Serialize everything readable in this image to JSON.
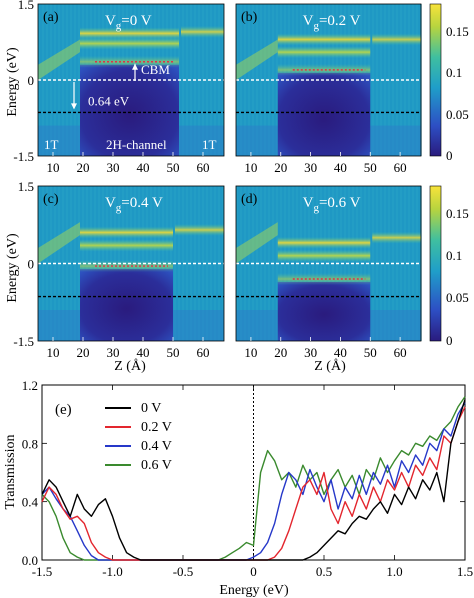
{
  "heatmaps": {
    "y_axis_label": "Energy (eV)",
    "x_axis_label": "Z (Å)",
    "colorbar_ticks": [
      "0.15",
      "0.1",
      "0.05",
      "0"
    ],
    "panels": [
      {
        "tag": "(a)",
        "vg_prefix": "V",
        "vg_sub": "g",
        "vg_value": "=0 V"
      },
      {
        "tag": "(b)",
        "vg_prefix": "V",
        "vg_sub": "g",
        "vg_value": "=0.2 V"
      },
      {
        "tag": "(c)",
        "vg_prefix": "V",
        "vg_sub": "g",
        "vg_value": "=0.4 V"
      },
      {
        "tag": "(d)",
        "vg_prefix": "V",
        "vg_sub": "g",
        "vg_value": "=0.6 V"
      }
    ],
    "annotations": {
      "cbm": "CBM",
      "offset": "0.64 eV",
      "left_region": "1T",
      "channel": "2H-channel",
      "right_region": "1T"
    },
    "colors": {
      "low": "#2b1b8a",
      "mid": "#1f9ec9",
      "high": "#f5e23a",
      "cbm_line": "#e0304a"
    }
  },
  "chart_data": [
    {
      "type": "heatmap",
      "panel": "(a)",
      "x_ticks": [
        10,
        20,
        30,
        40,
        50,
        60
      ],
      "y_ticks": [
        1.5,
        0,
        -1.5
      ],
      "xlim": [
        5,
        67
      ],
      "ylim": [
        -1.5,
        1.5
      ],
      "colorbar_range": [
        0,
        0.18
      ],
      "colorbar_ticks": [
        0,
        0.05,
        0.1,
        0.15
      ],
      "channel_z": [
        19,
        52
      ],
      "gap_bottom_eV": -1.5,
      "cbm_eV": 0.36,
      "fermi_eV": 0,
      "reference_eV": -0.64,
      "bands_eV": [
        0.36,
        0.72,
        0.92
      ],
      "left_1t_band_eV": [
        0.1,
        0.5
      ],
      "right_1t_band_eV": [
        0.95,
        1.0
      ]
    },
    {
      "type": "heatmap",
      "panel": "(b)",
      "x_ticks": [
        10,
        20,
        30,
        40,
        50,
        60
      ],
      "y_ticks": [
        1.5,
        0,
        -1.5
      ],
      "xlim": [
        5,
        67
      ],
      "ylim": [
        -1.5,
        1.5
      ],
      "channel_z": [
        19,
        50
      ],
      "cbm_eV": 0.2,
      "fermi_eV": 0,
      "reference_eV": -0.64,
      "bands_eV": [
        0.2,
        0.55,
        0.8
      ]
    },
    {
      "type": "heatmap",
      "panel": "(c)",
      "x_ticks": [
        10,
        20,
        30,
        40,
        50,
        60
      ],
      "y_ticks": [
        1.5,
        0,
        -1.5
      ],
      "xlim": [
        5,
        67
      ],
      "ylim": [
        -1.5,
        1.5
      ],
      "channel_z": [
        19,
        50
      ],
      "cbm_eV": -0.05,
      "fermi_eV": 0,
      "reference_eV": -0.64,
      "bands_eV": [
        -0.05,
        0.35,
        0.6
      ]
    },
    {
      "type": "heatmap",
      "panel": "(d)",
      "x_ticks": [
        10,
        20,
        30,
        40,
        50,
        60
      ],
      "y_ticks": [
        1.5,
        0,
        -1.5
      ],
      "xlim": [
        5,
        67
      ],
      "ylim": [
        -1.5,
        1.5
      ],
      "channel_z": [
        19,
        50
      ],
      "cbm_eV": -0.3,
      "fermi_eV": 0,
      "reference_eV": -0.64,
      "bands_eV": [
        -0.3,
        0.15,
        0.4
      ]
    },
    {
      "type": "line",
      "panel": "(e)",
      "xlabel": "Energy (eV)",
      "ylabel": "Transmission",
      "xlim": [
        -1.5,
        1.5
      ],
      "ylim": [
        0,
        1.2
      ],
      "x_ticks": [
        -1.5,
        -1.0,
        -0.5,
        0,
        0.5,
        1.0,
        1.5
      ],
      "x_tick_labels": [
        "-1.5",
        "-1.0",
        "-0.5",
        "0",
        "0.5",
        "1.0",
        "1.5"
      ],
      "y_ticks": [
        0.0,
        0.4,
        0.8,
        1.2
      ],
      "y_tick_labels": [
        "0.0",
        "0.4",
        "0.8",
        "1.2"
      ],
      "legend_position": "top-left",
      "fermi_level_eV": 0,
      "series": [
        {
          "name": "0 V",
          "color": "#000000",
          "x": [
            -1.5,
            -1.45,
            -1.4,
            -1.35,
            -1.3,
            -1.25,
            -1.2,
            -1.15,
            -1.1,
            -1.05,
            -1.0,
            -0.95,
            -0.9,
            -0.85,
            -0.8,
            -0.75,
            0.2,
            0.25,
            0.3,
            0.35,
            0.4,
            0.45,
            0.5,
            0.55,
            0.6,
            0.65,
            0.7,
            0.75,
            0.8,
            0.85,
            0.9,
            0.95,
            1.0,
            1.05,
            1.1,
            1.15,
            1.2,
            1.25,
            1.3,
            1.35,
            1.4,
            1.45,
            1.5
          ],
          "y": [
            0.45,
            0.55,
            0.5,
            0.4,
            0.3,
            0.45,
            0.35,
            0.3,
            0.38,
            0.42,
            0.3,
            0.15,
            0.05,
            0.02,
            0.0,
            0.0,
            0.0,
            0.0,
            0.0,
            0.0,
            0.02,
            0.05,
            0.1,
            0.15,
            0.2,
            0.18,
            0.25,
            0.3,
            0.28,
            0.35,
            0.4,
            0.32,
            0.45,
            0.38,
            0.5,
            0.42,
            0.55,
            0.48,
            0.6,
            0.4,
            0.8,
            0.95,
            1.1
          ]
        },
        {
          "name": "0.2 V",
          "color": "#e3262e",
          "x": [
            -1.5,
            -1.45,
            -1.4,
            -1.35,
            -1.3,
            -1.25,
            -1.2,
            -1.15,
            -1.1,
            -1.05,
            -1.0,
            0.1,
            0.15,
            0.2,
            0.25,
            0.3,
            0.35,
            0.4,
            0.45,
            0.5,
            0.55,
            0.6,
            0.65,
            0.7,
            0.75,
            0.8,
            0.85,
            0.9,
            0.95,
            1.0,
            1.05,
            1.1,
            1.15,
            1.2,
            1.25,
            1.3,
            1.35,
            1.4,
            1.45,
            1.5
          ],
          "y": [
            0.4,
            0.5,
            0.45,
            0.35,
            0.28,
            0.3,
            0.25,
            0.12,
            0.05,
            0.02,
            0.0,
            0.0,
            0.02,
            0.08,
            0.2,
            0.35,
            0.5,
            0.55,
            0.45,
            0.6,
            0.35,
            0.25,
            0.4,
            0.3,
            0.45,
            0.35,
            0.5,
            0.4,
            0.55,
            0.48,
            0.6,
            0.5,
            0.65,
            0.58,
            0.7,
            0.62,
            0.85,
            0.8,
            0.95,
            1.05
          ]
        },
        {
          "name": "0.4 V",
          "color": "#2638c9",
          "x": [
            -1.5,
            -1.45,
            -1.4,
            -1.35,
            -1.3,
            -1.25,
            -1.2,
            -1.15,
            -1.1,
            -1.05,
            -0.05,
            0.0,
            0.05,
            0.1,
            0.15,
            0.2,
            0.25,
            0.3,
            0.35,
            0.4,
            0.45,
            0.5,
            0.55,
            0.6,
            0.65,
            0.7,
            0.75,
            0.8,
            0.85,
            0.9,
            0.95,
            1.0,
            1.05,
            1.1,
            1.15,
            1.2,
            1.25,
            1.3,
            1.35,
            1.4,
            1.45,
            1.5
          ],
          "y": [
            0.45,
            0.5,
            0.42,
            0.35,
            0.3,
            0.2,
            0.1,
            0.03,
            0.0,
            0.0,
            0.0,
            0.02,
            0.05,
            0.12,
            0.25,
            0.45,
            0.6,
            0.55,
            0.45,
            0.62,
            0.5,
            0.4,
            0.55,
            0.35,
            0.5,
            0.42,
            0.58,
            0.45,
            0.6,
            0.52,
            0.65,
            0.5,
            0.68,
            0.6,
            0.72,
            0.65,
            0.8,
            0.75,
            0.9,
            0.85,
            1.0,
            1.08
          ]
        },
        {
          "name": "0.6 V",
          "color": "#3a8a2e",
          "x": [
            -1.5,
            -1.45,
            -1.4,
            -1.35,
            -1.3,
            -1.25,
            -1.2,
            -0.25,
            -0.2,
            -0.15,
            -0.1,
            -0.05,
            0.0,
            0.05,
            0.1,
            0.15,
            0.2,
            0.25,
            0.3,
            0.35,
            0.4,
            0.45,
            0.5,
            0.55,
            0.6,
            0.65,
            0.7,
            0.75,
            0.8,
            0.85,
            0.9,
            0.95,
            1.0,
            1.05,
            1.1,
            1.15,
            1.2,
            1.25,
            1.3,
            1.35,
            1.4,
            1.45,
            1.5
          ],
          "y": [
            0.45,
            0.4,
            0.3,
            0.15,
            0.05,
            0.02,
            0.0,
            0.0,
            0.02,
            0.05,
            0.08,
            0.12,
            0.1,
            0.6,
            0.75,
            0.68,
            0.55,
            0.6,
            0.5,
            0.65,
            0.55,
            0.6,
            0.45,
            0.55,
            0.62,
            0.5,
            0.58,
            0.45,
            0.62,
            0.55,
            0.7,
            0.6,
            0.68,
            0.75,
            0.72,
            0.8,
            0.78,
            0.85,
            0.82,
            0.9,
            0.95,
            1.05,
            1.12
          ]
        }
      ]
    }
  ]
}
